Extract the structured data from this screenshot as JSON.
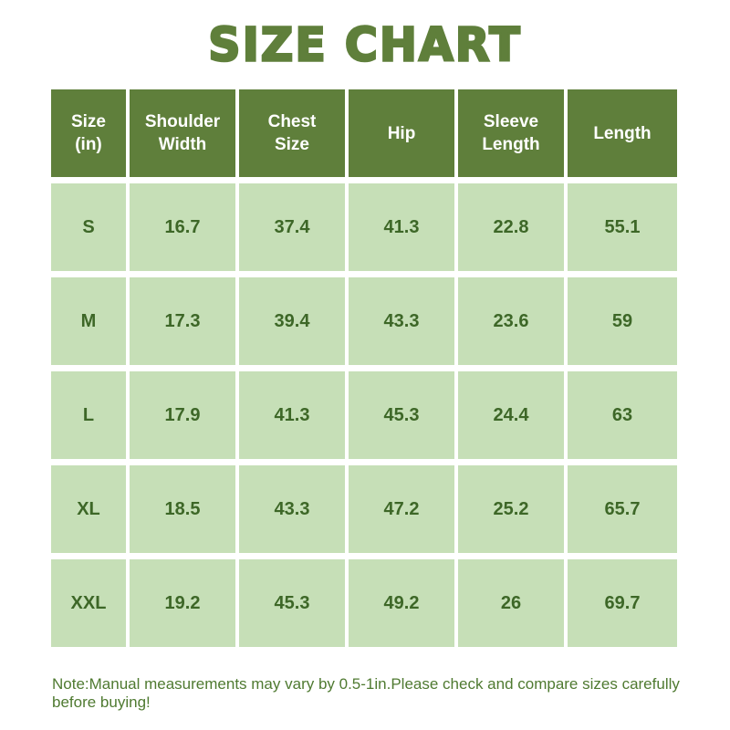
{
  "title": "SIZE CHART",
  "table": {
    "headers": [
      "Size\n(in)",
      "Shoulder\nWidth",
      "Chest\nSize",
      "Hip",
      "Sleeve\nLength",
      "Length"
    ],
    "rows": [
      [
        "S",
        "16.7",
        "37.4",
        "41.3",
        "22.8",
        "55.1"
      ],
      [
        "M",
        "17.3",
        "39.4",
        "43.3",
        "23.6",
        "59"
      ],
      [
        "L",
        "17.9",
        "41.3",
        "45.3",
        "24.4",
        "63"
      ],
      [
        "XL",
        "18.5",
        "43.3",
        "47.2",
        "25.2",
        "65.7"
      ],
      [
        "XXL",
        "19.2",
        "45.3",
        "49.2",
        "26",
        "69.7"
      ]
    ]
  },
  "note": "Note:Manual measurements may vary by 0.5-1in.Please check and compare sizes carefully before buying!",
  "colors": {
    "header_bg": "#5f7f3b",
    "body_bg": "#c6dfb7",
    "body_text": "#3d6727",
    "title_text": "#5f7f3b"
  }
}
